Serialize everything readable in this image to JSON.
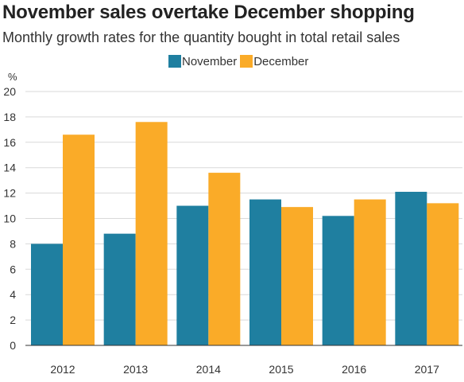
{
  "title": "November sales overtake December shopping",
  "subtitle": "Monthly growth rates for the quantity bought in total retail sales",
  "chart_data": {
    "type": "bar",
    "title": "November sales overtake December shopping",
    "subtitle": "Monthly growth rates for the quantity bought in total retail sales",
    "ylabel": "%",
    "xlabel": "",
    "ylim": [
      0,
      20
    ],
    "yticks": [
      0,
      2,
      4,
      6,
      8,
      10,
      12,
      14,
      16,
      18,
      20
    ],
    "grid": true,
    "legend_position": "top-center",
    "categories": [
      "2012",
      "2013",
      "2014",
      "2015",
      "2016",
      "2017"
    ],
    "series": [
      {
        "name": "November",
        "color": "#1f7fa0",
        "values": [
          8.0,
          8.8,
          11.0,
          11.5,
          10.2,
          12.1
        ]
      },
      {
        "name": "December",
        "color": "#faab28",
        "values": [
          16.6,
          17.6,
          13.6,
          10.9,
          11.5,
          11.2
        ]
      }
    ]
  }
}
